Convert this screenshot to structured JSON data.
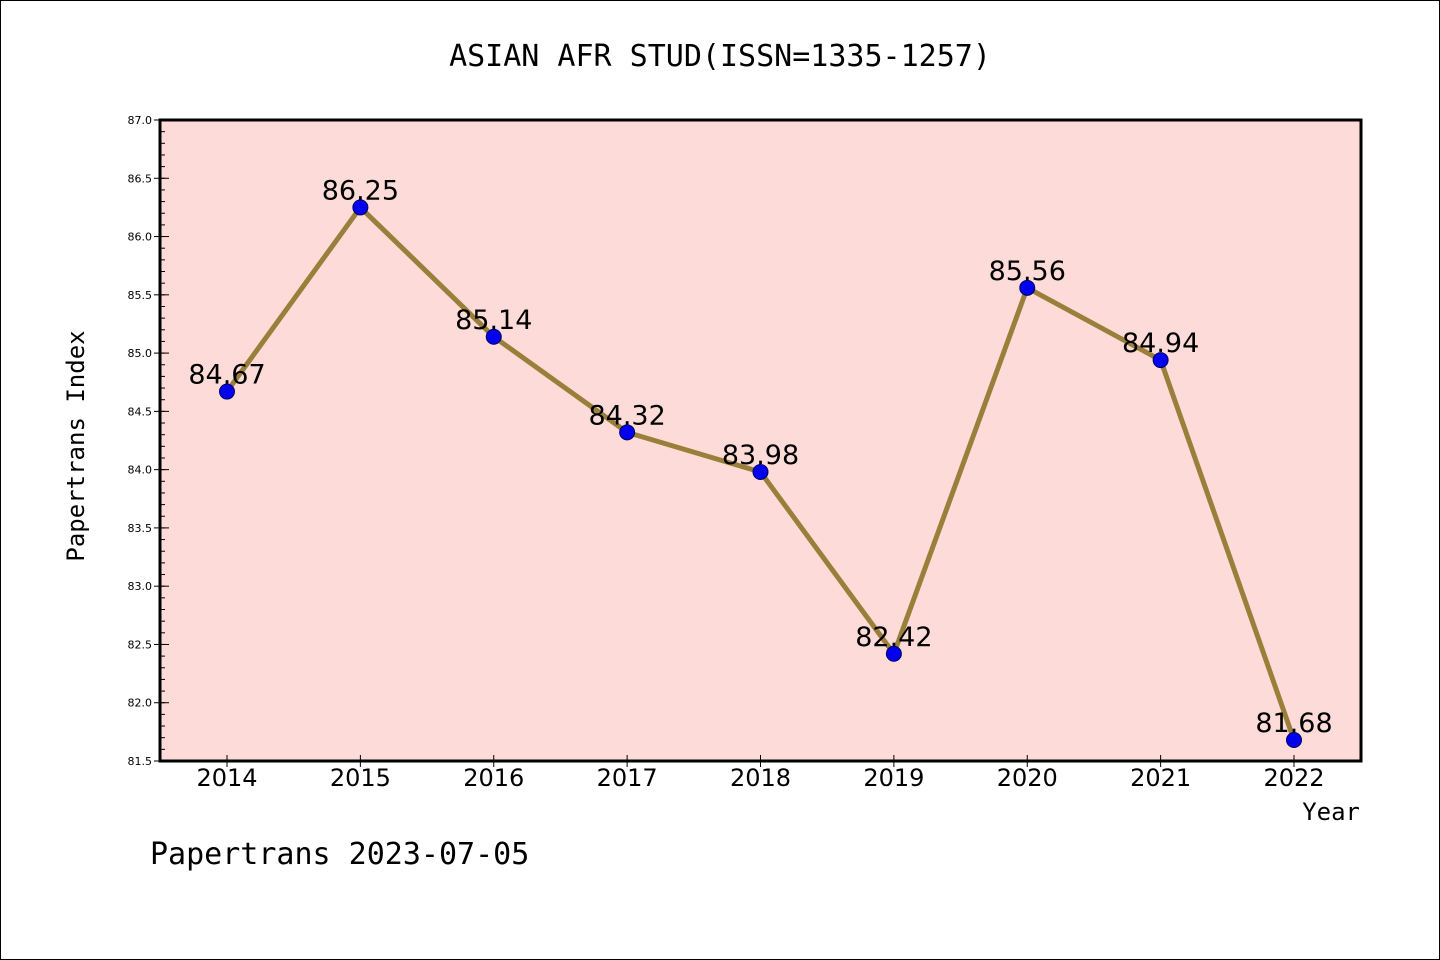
{
  "chart_data": {
    "type": "line",
    "title": "ASIAN AFR STUD(ISSN=1335-1257)",
    "xlabel": "Year",
    "ylabel": "Papertrans Index",
    "footer": "Papertrans 2023-07-05",
    "x": [
      "2014",
      "2015",
      "2016",
      "2017",
      "2018",
      "2019",
      "2020",
      "2021",
      "2022"
    ],
    "series": [
      {
        "values": [
          84.67,
          86.25,
          85.14,
          84.32,
          83.98,
          82.42,
          85.56,
          84.94,
          81.68
        ],
        "labels": [
          "84.67",
          "86.25",
          "85.14",
          "84.32",
          "83.98",
          "82.42",
          "85.56",
          "84.94",
          "81.68"
        ]
      }
    ],
    "ylim": [
      81.5,
      87.0
    ],
    "yticks": [
      "81.5",
      "82.0",
      "82.5",
      "83.0",
      "83.5",
      "84.0",
      "84.5",
      "85.0",
      "85.5",
      "86.0",
      "86.5",
      "87.0"
    ],
    "grid": false,
    "colors": {
      "plot_background": "#fddbd9",
      "line": "#9a7f3a",
      "marker": "#0000ee",
      "axis": "#000000"
    }
  }
}
